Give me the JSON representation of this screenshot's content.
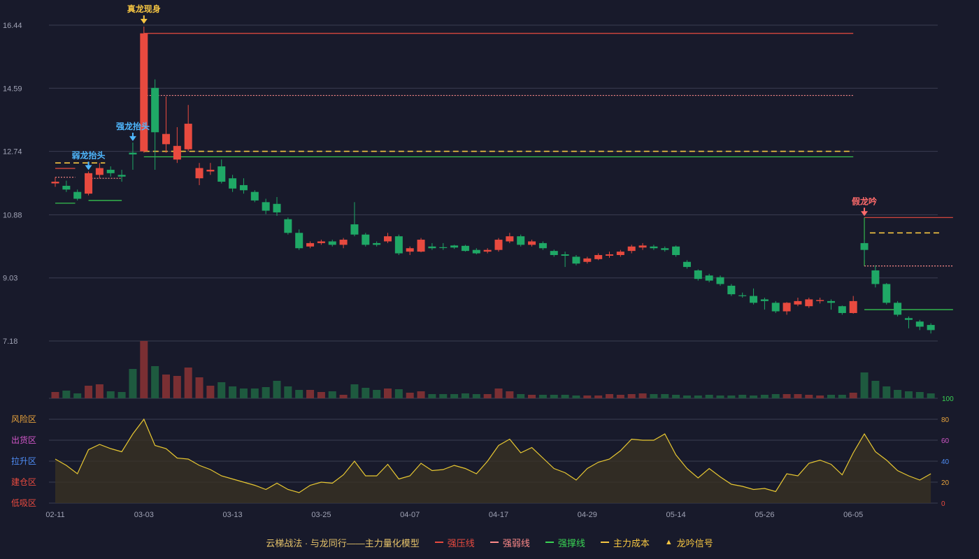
{
  "colors": {
    "background": "#181a2b",
    "up": "#e84a3f",
    "down": "#1fa866",
    "up_volume": "#7a2f33",
    "down_volume": "#1e5a3f",
    "pressure": "#e84a3f",
    "weak_pressure": "#ff8a8a",
    "support": "#39d353",
    "cost": "#f5c542",
    "grid": "#3a3d52",
    "axis_text": "#a0a3b5",
    "indicator": "#e8c832"
  },
  "chart_data": {
    "type": "candlestick",
    "y_ticks": [
      "16.44",
      "14.59",
      "12.74",
      "10.88",
      "9.03",
      "7.18"
    ],
    "ylim": [
      7.18,
      16.44
    ],
    "x_ticks": [
      {
        "index": 0,
        "label": "02-11"
      },
      {
        "index": 8,
        "label": "03-03"
      },
      {
        "index": 16,
        "label": "03-13"
      },
      {
        "index": 24,
        "label": "03-25"
      },
      {
        "index": 32,
        "label": "04-07"
      },
      {
        "index": 40,
        "label": "04-17"
      },
      {
        "index": 48,
        "label": "04-29"
      },
      {
        "index": 56,
        "label": "05-14"
      },
      {
        "index": 64,
        "label": "05-26"
      },
      {
        "index": 72,
        "label": "06-05"
      }
    ],
    "candles": [
      [
        11.8,
        11.85,
        11.98,
        11.7
      ],
      [
        11.73,
        11.62,
        11.88,
        11.55
      ],
      [
        11.55,
        11.35,
        11.62,
        11.3
      ],
      [
        11.5,
        12.1,
        12.15,
        11.45
      ],
      [
        12.05,
        12.25,
        12.4,
        11.95
      ],
      [
        12.2,
        12.1,
        12.3,
        12.0
      ],
      [
        12.05,
        12.0,
        12.2,
        11.85
      ],
      [
        12.7,
        12.65,
        13.0,
        12.2
      ],
      [
        12.74,
        16.2,
        16.4,
        12.7
      ],
      [
        14.6,
        13.3,
        14.85,
        12.2
      ],
      [
        12.95,
        13.25,
        14.35,
        12.7
      ],
      [
        12.5,
        12.9,
        13.45,
        12.4
      ],
      [
        12.8,
        13.55,
        14.1,
        12.75
      ],
      [
        11.95,
        12.25,
        12.4,
        11.75
      ],
      [
        12.15,
        12.2,
        12.4,
        12.05
      ],
      [
        12.3,
        11.85,
        12.5,
        11.8
      ],
      [
        11.95,
        11.65,
        12.05,
        11.55
      ],
      [
        11.75,
        11.6,
        11.95,
        11.5
      ],
      [
        11.55,
        11.3,
        11.6,
        11.25
      ],
      [
        11.25,
        11.0,
        11.35,
        10.9
      ],
      [
        11.2,
        10.95,
        11.4,
        10.85
      ],
      [
        10.75,
        10.35,
        10.8,
        10.3
      ],
      [
        10.35,
        9.9,
        10.45,
        9.85
      ],
      [
        9.95,
        10.05,
        10.1,
        9.9
      ],
      [
        10.05,
        10.1,
        10.15,
        10.0
      ],
      [
        10.1,
        10.0,
        10.15,
        9.95
      ],
      [
        10.0,
        10.15,
        10.2,
        9.9
      ],
      [
        10.6,
        10.3,
        11.25,
        10.25
      ],
      [
        10.3,
        10.0,
        10.35,
        9.95
      ],
      [
        10.05,
        10.0,
        10.1,
        9.95
      ],
      [
        10.1,
        10.25,
        10.35,
        10.05
      ],
      [
        10.25,
        9.75,
        10.3,
        9.7
      ],
      [
        9.8,
        9.9,
        9.95,
        9.7
      ],
      [
        9.8,
        10.15,
        10.2,
        9.78
      ],
      [
        9.95,
        9.9,
        10.05,
        9.85
      ],
      [
        9.93,
        9.92,
        10.05,
        9.85
      ],
      [
        9.98,
        9.92,
        10.0,
        9.88
      ],
      [
        9.97,
        9.82,
        10.0,
        9.8
      ],
      [
        9.85,
        9.75,
        9.9,
        9.72
      ],
      [
        9.8,
        9.85,
        9.9,
        9.75
      ],
      [
        9.85,
        10.15,
        10.2,
        9.8
      ],
      [
        10.1,
        10.25,
        10.35,
        10.05
      ],
      [
        10.25,
        10.0,
        10.3,
        9.95
      ],
      [
        10.0,
        10.1,
        10.15,
        9.95
      ],
      [
        10.05,
        9.9,
        10.1,
        9.85
      ],
      [
        9.82,
        9.7,
        9.86,
        9.65
      ],
      [
        9.72,
        9.68,
        9.8,
        9.35
      ],
      [
        9.65,
        9.45,
        9.7,
        9.4
      ],
      [
        9.5,
        9.6,
        9.65,
        9.45
      ],
      [
        9.58,
        9.7,
        9.75,
        9.55
      ],
      [
        9.68,
        9.72,
        9.8,
        9.62
      ],
      [
        9.7,
        9.8,
        9.85,
        9.65
      ],
      [
        9.82,
        9.95,
        10.0,
        9.75
      ],
      [
        9.92,
        9.98,
        10.05,
        9.85
      ],
      [
        9.95,
        9.9,
        10.0,
        9.85
      ],
      [
        9.9,
        9.85,
        9.95,
        9.8
      ],
      [
        9.95,
        9.7,
        9.98,
        9.65
      ],
      [
        9.5,
        9.35,
        9.55,
        9.3
      ],
      [
        9.25,
        9.0,
        9.28,
        8.95
      ],
      [
        9.1,
        8.95,
        9.15,
        8.9
      ],
      [
        9.05,
        8.85,
        9.1,
        8.8
      ],
      [
        8.8,
        8.55,
        8.85,
        8.5
      ],
      [
        8.52,
        8.5,
        8.6,
        8.45
      ],
      [
        8.5,
        8.3,
        8.72,
        8.25
      ],
      [
        8.4,
        8.35,
        8.45,
        8.1
      ],
      [
        8.3,
        8.05,
        8.35,
        8.0
      ],
      [
        8.05,
        8.3,
        8.32,
        7.95
      ],
      [
        8.25,
        8.35,
        8.45,
        8.2
      ],
      [
        8.2,
        8.4,
        8.45,
        8.15
      ],
      [
        8.35,
        8.38,
        8.45,
        8.28
      ],
      [
        8.35,
        8.3,
        8.4,
        8.1
      ],
      [
        8.2,
        8.0,
        8.22,
        7.95
      ],
      [
        8.0,
        8.35,
        8.5,
        7.98
      ],
      [
        10.05,
        9.85,
        10.15,
        9.55
      ],
      [
        9.25,
        8.85,
        9.4,
        8.75
      ],
      [
        8.85,
        8.3,
        8.88,
        8.25
      ],
      [
        8.3,
        7.95,
        8.35,
        7.9
      ],
      [
        7.85,
        7.8,
        7.9,
        7.55
      ],
      [
        7.75,
        7.6,
        7.8,
        7.5
      ],
      [
        7.65,
        7.5,
        7.7,
        7.4
      ]
    ],
    "volumes": [
      9,
      11,
      7,
      18,
      20,
      10,
      9,
      42,
      82,
      46,
      34,
      32,
      44,
      30,
      18,
      23,
      17,
      14,
      14,
      16,
      25,
      17,
      12,
      12,
      9,
      10,
      5,
      20,
      15,
      12,
      14,
      13,
      8,
      10,
      6,
      6,
      6,
      7,
      6,
      6,
      14,
      10,
      6,
      5,
      5,
      5,
      5,
      4,
      4,
      4,
      6,
      5,
      6,
      7,
      6,
      6,
      5,
      4,
      4,
      5,
      4,
      4,
      5,
      4,
      5,
      6,
      6,
      6,
      5,
      4,
      5,
      5,
      8,
      37,
      25,
      17,
      12,
      10,
      9,
      7
    ],
    "support_resistance_lines": [
      {
        "type": "pressure",
        "y": 16.2,
        "x": [
          8,
          72
        ]
      },
      {
        "type": "weak_pressure",
        "y": 14.38,
        "x": [
          8,
          72
        ]
      },
      {
        "type": "cost",
        "y": 12.74,
        "x": [
          8,
          72
        ]
      },
      {
        "type": "support",
        "y": 12.58,
        "x": [
          8,
          72
        ]
      },
      {
        "type": "pressure",
        "y": 12.24,
        "x": [
          0,
          1.8
        ]
      },
      {
        "type": "cost",
        "y": 12.4,
        "x": [
          0,
          4.5
        ]
      },
      {
        "type": "weak_pressure",
        "y": 11.98,
        "x": [
          0,
          1.8
        ]
      },
      {
        "type": "weak_pressure",
        "y": 11.95,
        "x": [
          3,
          6
        ]
      },
      {
        "type": "support",
        "y": 11.22,
        "x": [
          0,
          1.8
        ]
      },
      {
        "type": "support",
        "y": 11.3,
        "x": [
          3,
          6
        ]
      },
      {
        "type": "pressure",
        "y": 10.8,
        "x": [
          73,
          81
        ]
      },
      {
        "type": "cost",
        "y": 10.35,
        "x": [
          73.5,
          80
        ]
      },
      {
        "type": "weak_pressure",
        "y": 9.38,
        "x": [
          73,
          81
        ]
      },
      {
        "type": "support",
        "y": 8.1,
        "x": [
          73,
          81
        ]
      }
    ],
    "signals": [
      {
        "label": "真龙现身",
        "index": 8,
        "price": 16.44,
        "color": "#f5c542"
      },
      {
        "label": "强龙抬头",
        "index": 7,
        "price": 13.0,
        "color": "#4fb8ff"
      },
      {
        "label": "弱龙抬头",
        "index": 3,
        "price": 12.15,
        "color": "#4fb8ff"
      },
      {
        "label": "假龙吟",
        "index": 73,
        "price": 10.8,
        "color": "#ff6b6b"
      }
    ],
    "volume_axis_label": "100",
    "indicator": {
      "zones": [
        {
          "label": "风险区",
          "value": 80,
          "color": "#e8a33c"
        },
        {
          "label": "出货区",
          "value": 60,
          "color": "#d257c9"
        },
        {
          "label": "拉升区",
          "value": 40,
          "color": "#4f8ef7"
        },
        {
          "label": "建仓区",
          "value": 20,
          "color": "#e84a3f"
        },
        {
          "label": "低吸区",
          "value": 0,
          "color": "#e84a3f"
        }
      ],
      "ticks": [
        {
          "label": "80",
          "value": 80,
          "color": "#e8a33c"
        },
        {
          "label": "60",
          "value": 60,
          "color": "#d257c9"
        },
        {
          "label": "40",
          "value": 40,
          "color": "#4f8ef7"
        },
        {
          "label": "20",
          "value": 20,
          "color": "#e8a33c"
        },
        {
          "label": "0",
          "value": 0,
          "color": "#e84a3f"
        }
      ],
      "values": [
        42,
        36,
        28,
        51,
        56,
        52,
        49,
        66,
        80,
        55,
        52,
        43,
        42,
        36,
        32,
        26,
        23,
        20,
        17,
        13,
        19,
        13,
        10,
        17,
        20,
        19,
        27,
        40,
        26,
        26,
        37,
        23,
        26,
        38,
        31,
        32,
        36,
        33,
        28,
        40,
        55,
        61,
        48,
        53,
        43,
        33,
        29,
        22,
        33,
        39,
        42,
        50,
        61,
        60,
        60,
        66,
        46,
        33,
        24,
        33,
        25,
        18,
        16,
        13,
        14,
        11,
        28,
        26,
        38,
        41,
        37,
        27,
        48,
        66,
        49,
        41,
        31,
        26,
        22,
        28
      ]
    }
  },
  "legend": {
    "title": "云梯战法 · 与龙同行——主力量化模型",
    "items": [
      {
        "label": "强压线",
        "color": "#e84a3f",
        "style": "solid"
      },
      {
        "label": "强弱线",
        "color": "#ff8a8a",
        "style": "dashed"
      },
      {
        "label": "强撑线",
        "color": "#39d353",
        "style": "solid"
      },
      {
        "label": "主力成本",
        "color": "#f5c542",
        "style": "dashed"
      }
    ],
    "signal_label": "龙吟信号"
  }
}
